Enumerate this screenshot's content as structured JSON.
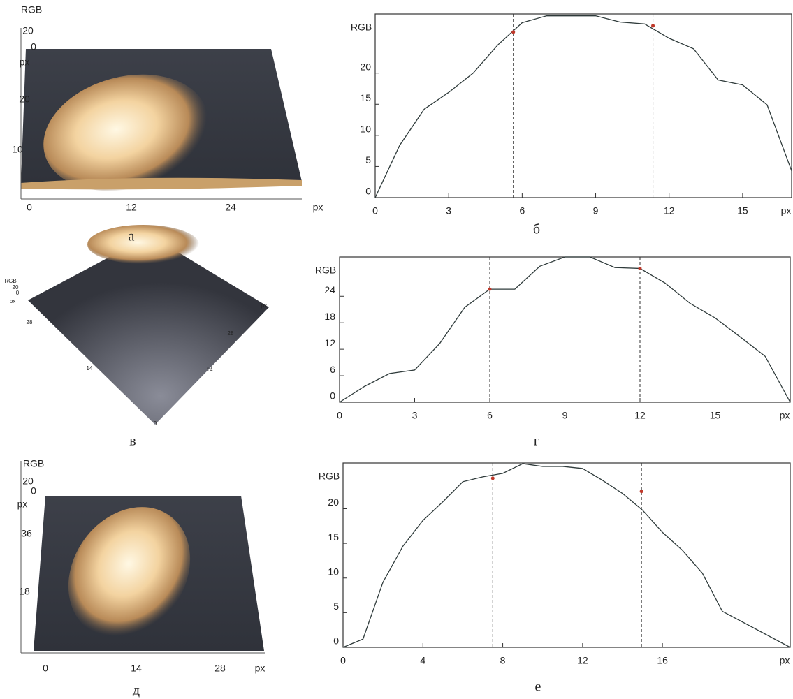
{
  "chart_data": [
    {
      "type": "surface",
      "caption": "а",
      "z_label": "RGB",
      "zticks": [
        20,
        0
      ],
      "y_unit": "px",
      "yticks": [
        20,
        10
      ],
      "xticks": [
        0,
        12,
        24
      ],
      "x_unit": "px"
    },
    {
      "type": "line",
      "caption": "б",
      "y_label": "RGB",
      "x_unit": "px",
      "color": "#2f3b3b",
      "x": [
        0,
        1,
        2,
        3,
        4,
        5,
        6,
        7,
        8,
        9,
        10,
        11,
        12,
        13,
        14,
        15,
        16,
        17
      ],
      "values": [
        0,
        8.4,
        14.2,
        16.9,
        20,
        24.5,
        28.1,
        29.2,
        29.2,
        29.2,
        28.2,
        27.9,
        25.6,
        23.9,
        18.9,
        18.1,
        14.9,
        4.3
      ],
      "xlim": [
        0,
        17
      ],
      "ylim": [
        0,
        29.5
      ],
      "xticks": [
        0,
        3,
        6,
        9,
        12,
        15
      ],
      "yticks": [
        0,
        5,
        10,
        15,
        20
      ],
      "vlines": [
        5.64,
        11.34
      ],
      "markers": {
        "x": [
          5.64,
          11.34
        ],
        "values": [
          26.6,
          27.6
        ],
        "color": "#c0392b"
      }
    },
    {
      "type": "surface",
      "caption": "в",
      "z_label": "RGB",
      "zticks": [
        20,
        0
      ],
      "y_unit": "px",
      "yticks": [
        28,
        14,
        0
      ],
      "xticks": [
        28,
        14
      ],
      "x_unit": "px"
    },
    {
      "type": "line",
      "caption": "г",
      "y_label": "RGB",
      "x_unit": "px",
      "color": "#2f3b3b",
      "x": [
        0,
        1,
        2,
        3,
        4,
        5,
        6,
        7,
        8,
        9,
        10,
        11,
        12,
        13,
        14,
        15,
        16,
        17,
        18
      ],
      "values": [
        0,
        3.6,
        6.5,
        7.3,
        13.3,
        21.5,
        25.6,
        25.6,
        30.8,
        32.9,
        32.9,
        30.5,
        30.3,
        27,
        22.4,
        19.1,
        14.8,
        10.4,
        0
      ],
      "xlim": [
        0,
        18
      ],
      "ylim": [
        0,
        32.9
      ],
      "xticks": [
        0,
        3,
        6,
        9,
        12,
        15
      ],
      "yticks": [
        0,
        6,
        12,
        18,
        24
      ],
      "vlines": [
        6,
        12
      ],
      "markers": {
        "x": [
          6,
          12
        ],
        "values": [
          25.6,
          30.3
        ],
        "color": "#c0392b"
      }
    },
    {
      "type": "surface",
      "caption": "д",
      "z_label": "RGB",
      "zticks": [
        20,
        0
      ],
      "y_unit": "px",
      "yticks": [
        36,
        18
      ],
      "xticks": [
        0,
        14,
        28
      ],
      "x_unit": "px"
    },
    {
      "type": "line",
      "caption": "е",
      "y_label": "RGB",
      "x_unit": "px",
      "color": "#2f3b3b",
      "x": [
        0,
        1,
        2,
        3,
        4,
        5,
        6,
        7,
        8,
        9,
        10,
        11,
        12,
        13,
        14,
        15,
        16,
        17,
        18,
        19,
        22.4
      ],
      "values": [
        0,
        1.2,
        9.4,
        14.6,
        18.3,
        21,
        23.9,
        24.6,
        25.1,
        26.5,
        26.1,
        26.1,
        25.8,
        24.1,
        22.2,
        19.8,
        16.6,
        14,
        10.7,
        5.2,
        0
      ],
      "xlim": [
        0,
        22.4
      ],
      "ylim": [
        0,
        26.6
      ],
      "xticks": [
        0,
        4,
        8,
        12,
        16
      ],
      "yticks": [
        0,
        5,
        10,
        15,
        20
      ],
      "vlines": [
        7.5,
        14.95
      ],
      "markers": {
        "x": [
          7.5,
          14.95
        ],
        "values": [
          24.4,
          22.5
        ],
        "color": "#c0392b"
      }
    }
  ]
}
